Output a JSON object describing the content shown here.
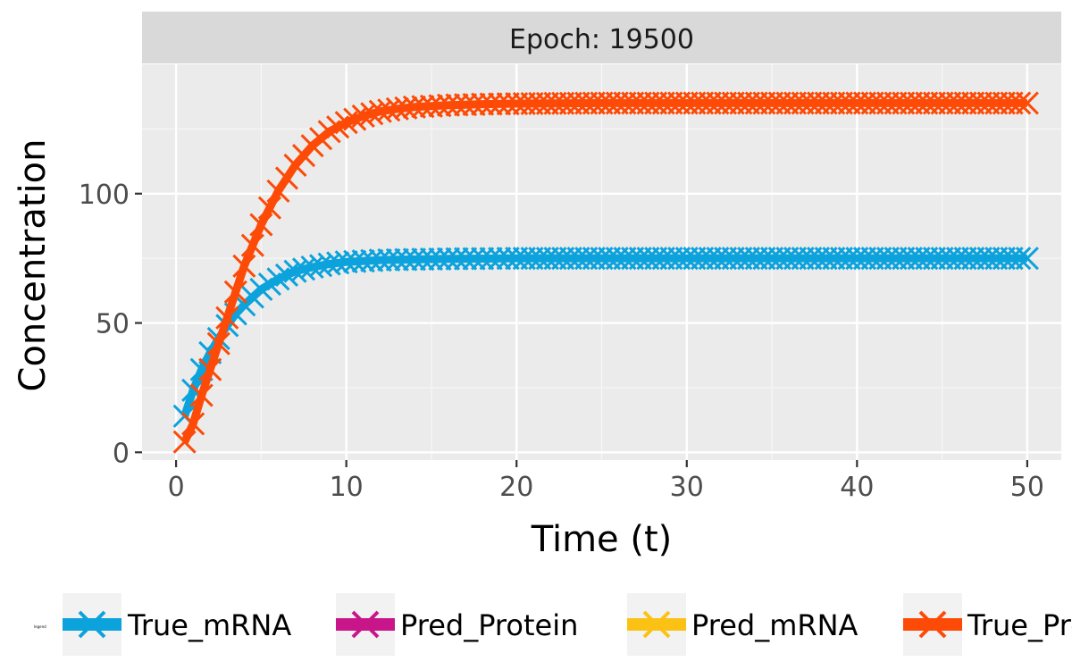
{
  "chart_data": {
    "type": "line",
    "facet_label": "Epoch: 19500",
    "xlabel": "Time (t)",
    "ylabel": "Concentration",
    "xlim": [
      -2,
      52
    ],
    "ylim": [
      -3,
      150
    ],
    "x_ticks": [
      0,
      10,
      20,
      30,
      40,
      50
    ],
    "y_ticks": [
      0,
      50,
      100
    ],
    "grid": true,
    "legend_position": "bottom",
    "legend_title": "legend",
    "legend": [
      {
        "name": "True_mRNA",
        "color": "#0ca2dc"
      },
      {
        "name": "Pred_Protein",
        "color": "#c8168a"
      },
      {
        "name": "Pred_mRNA",
        "color": "#fbc215"
      },
      {
        "name": "True_Protein",
        "color": "#fd4a06"
      }
    ],
    "series": [
      {
        "name": "True_mRNA",
        "color": "#0ca2dc",
        "marker": "x",
        "x": [
          0.5,
          1,
          1.5,
          2,
          2.5,
          3,
          3.5,
          4,
          5,
          6,
          7,
          8,
          9,
          10,
          12,
          14,
          16,
          18,
          20,
          25,
          30,
          35,
          40,
          45,
          50
        ],
        "values": [
          14,
          24,
          32,
          38.5,
          44,
          49,
          53.5,
          57,
          63,
          67,
          70,
          71.6,
          72.8,
          73.6,
          74.3,
          74.6,
          74.8,
          74.9,
          75,
          75,
          75,
          75,
          75,
          75,
          75
        ]
      },
      {
        "name": "True_Protein",
        "color": "#fd4a06",
        "marker": "x",
        "x": [
          0.5,
          1,
          1.5,
          2,
          2.5,
          3,
          3.5,
          4,
          5,
          6,
          7,
          8,
          9,
          10,
          11,
          12,
          13,
          14,
          16,
          18,
          20,
          25,
          30,
          35,
          40,
          45,
          50
        ],
        "values": [
          4,
          11,
          22,
          32,
          42,
          52,
          62,
          72,
          88,
          101,
          111,
          118.5,
          124,
          127.5,
          130,
          131.8,
          132.8,
          133.5,
          134.2,
          134.6,
          134.8,
          135,
          135,
          135,
          135,
          135,
          135
        ]
      }
    ]
  }
}
